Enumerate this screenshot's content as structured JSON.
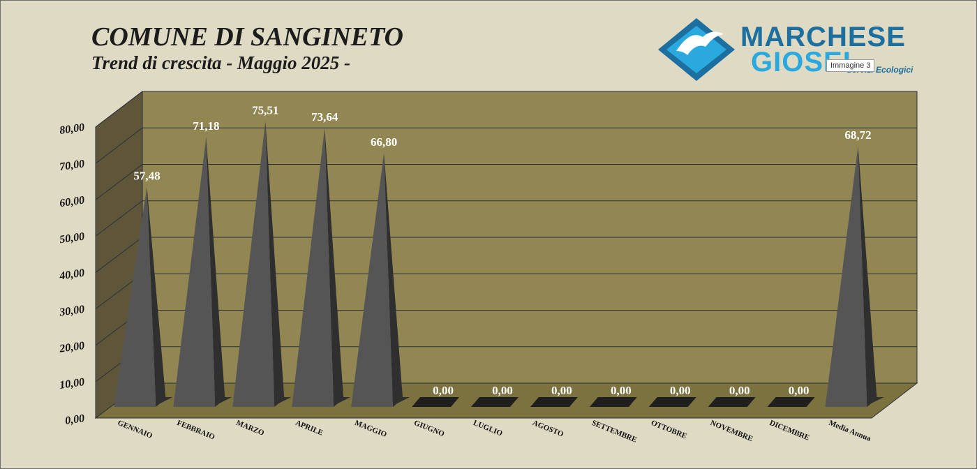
{
  "image_label": "Immagine 3",
  "logo": {
    "line1": "MARCHESE",
    "line2": "GIOSEI",
    "tagline": "Servizi Ecologici",
    "colors": {
      "dark": "#1d6fa0",
      "light": "#2aa9df"
    }
  },
  "chart_data": {
    "type": "bar",
    "style": "3d-pyramid",
    "title": "COMUNE DI SANGINETO",
    "subtitle": "Trend di crescita - Maggio 2025 -",
    "xlabel": "",
    "ylabel": "",
    "categories": [
      "GENNAIO",
      "FEBBRAIO",
      "MARZO",
      "APRILE",
      "MAGGIO",
      "GIUGNO",
      "LUGLIO",
      "AGOSTO",
      "SETTEMBRE",
      "OTTOBRE",
      "NOVEMBRE",
      "DICEMBRE",
      "Media Annua"
    ],
    "values": [
      57.48,
      71.18,
      75.51,
      73.64,
      66.8,
      0,
      0,
      0,
      0,
      0,
      0,
      0,
      68.72
    ],
    "data_labels": [
      "57,48",
      "71,18",
      "75,51",
      "73,64",
      "66,80",
      "0,00",
      "0,00",
      "0,00",
      "0,00",
      "0,00",
      "0,00",
      "0,00",
      "68,72"
    ],
    "ylim": [
      0,
      80
    ],
    "yticks": [
      "0,00",
      "10,00",
      "20,00",
      "30,00",
      "40,00",
      "50,00",
      "60,00",
      "70,00",
      "80,00"
    ],
    "grid": true,
    "legend": "none",
    "colors": {
      "back_wall": "#928753",
      "side_wall": "#5f5639",
      "floor": "#7c723f",
      "pyramid": "#555555",
      "pyramid_shadow": "#2f2f2f",
      "gridline": "#27303a",
      "label": "#ffffff"
    }
  }
}
